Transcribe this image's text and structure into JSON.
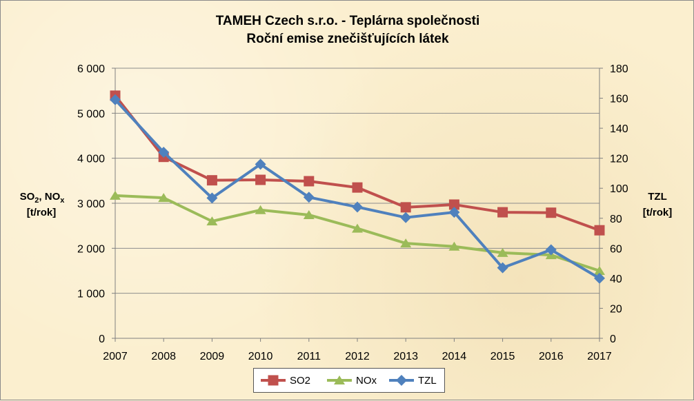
{
  "chart_data": {
    "type": "line",
    "title_line1": "TAMEH Czech s.r.o. - Teplárna společnosti",
    "title_line2": "Roční emise znečišťujících látek",
    "ylabel_left_line1_main": "SO",
    "ylabel_left_line1_sub1": "2",
    "ylabel_left_line1_mid": ", NO",
    "ylabel_left_line1_sub2": "x",
    "ylabel_left_line2": "[t/rok]",
    "ylabel_right_line1": "TZL",
    "ylabel_right_line2": "[t/rok]",
    "x": [
      "2007",
      "2008",
      "2009",
      "2010",
      "2011",
      "2012",
      "2013",
      "2014",
      "2015",
      "2016",
      "2017"
    ],
    "ylim_left": [
      0,
      6000
    ],
    "yticks_left": [
      "0",
      "1 000",
      "2 000",
      "3 000",
      "4 000",
      "5 000",
      "6 000"
    ],
    "ylim_right": [
      0,
      180
    ],
    "yticks_right": [
      "0",
      "20",
      "40",
      "60",
      "80",
      "100",
      "120",
      "140",
      "160",
      "180"
    ],
    "grid": true,
    "legend_position": "bottom",
    "series": [
      {
        "name": "SO2",
        "axis": "left",
        "color": "#c0504d",
        "marker": "square",
        "values": [
          5390,
          4030,
          3510,
          3520,
          3490,
          3350,
          2910,
          2970,
          2800,
          2790,
          2400
        ]
      },
      {
        "name": "NOx",
        "axis": "left",
        "color": "#9bbb59",
        "marker": "triangle",
        "values": [
          3170,
          3120,
          2600,
          2850,
          2740,
          2440,
          2110,
          2040,
          1900,
          1850,
          1500
        ]
      },
      {
        "name": "TZL",
        "axis": "right",
        "color": "#4f81bd",
        "marker": "diamond",
        "values": [
          159,
          124,
          93.5,
          116,
          94,
          87.5,
          80.5,
          84,
          47,
          59,
          40
        ]
      }
    ]
  }
}
